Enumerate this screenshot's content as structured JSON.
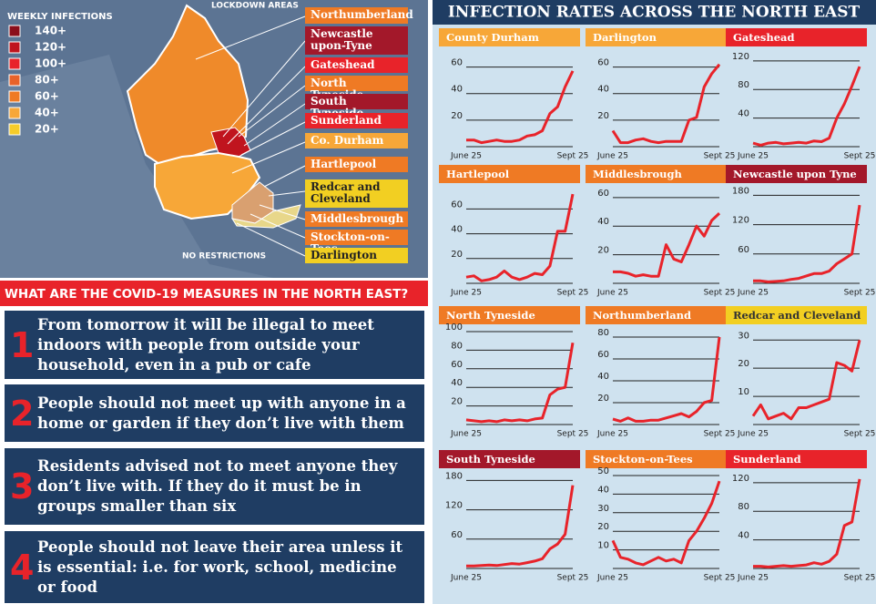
{
  "map": {
    "legend_title": "WEEKLY INFECTIONS",
    "lockdown_label": "LOCKDOWN AREAS",
    "no_restrictions_label": "NO RESTRICTIONS",
    "legend": [
      {
        "label": "140+",
        "color": "#8b0d1a"
      },
      {
        "label": "120+",
        "color": "#c0141e"
      },
      {
        "label": "100+",
        "color": "#e8232a"
      },
      {
        "label": "80+",
        "color": "#e8622a"
      },
      {
        "label": "60+",
        "color": "#ef7a24"
      },
      {
        "label": "40+",
        "color": "#f7a738"
      },
      {
        "label": "20+",
        "color": "#f6cc2a"
      }
    ],
    "areas": [
      {
        "name": "Northumberland",
        "color": "#ef7a24"
      },
      {
        "name": "Newcastle upon-Tyne",
        "color": "#a3182a"
      },
      {
        "name": "Gateshead",
        "color": "#e8232a"
      },
      {
        "name": "North Tyneside",
        "color": "#ef7a24"
      },
      {
        "name": "South Tyneside",
        "color": "#a3182a"
      },
      {
        "name": "Sunderland",
        "color": "#e8232a"
      },
      {
        "name": "Co. Durham",
        "color": "#f7a738"
      },
      {
        "name": "Hartlepool",
        "color": "#ef7a24"
      },
      {
        "name": "Redcar and Cleveland",
        "color": "#f2cf22"
      },
      {
        "name": "Middlesbrough",
        "color": "#ef7a24"
      },
      {
        "name": "Stockton-on-Tees",
        "color": "#ef7a24"
      },
      {
        "name": "Darlington",
        "color": "#f2cf22"
      }
    ]
  },
  "measures": {
    "title": "WHAT ARE THE COVID-19 MEASURES IN THE NORTH EAST?",
    "items": [
      {
        "number": 1,
        "text": "From tomorrow it will be illegal to meet indoors with people from outside your household, even in a pub or cafe"
      },
      {
        "number": 2,
        "text": "People should not meet up with anyone in a home or garden if they don’t live with them"
      },
      {
        "number": 3,
        "text": "Residents advised not to meet anyone they don’t live with. If they do it must be in groups smaller than six"
      },
      {
        "number": 4,
        "text": "People should not leave their area unless it is essential: i.e. for work, school, medicine or food"
      }
    ]
  },
  "charts_title": "INFECTION RATES ACROSS THE NORTH EAST",
  "chart_data": [
    {
      "type": "line",
      "title": "County Durham",
      "header_color": "#f7a738",
      "color": "#e8232a",
      "grid": true,
      "categories": [
        "June 25",
        null,
        null,
        null,
        null,
        null,
        null,
        null,
        null,
        null,
        null,
        null,
        null,
        null,
        "Sept 25"
      ],
      "values": [
        5,
        5,
        3,
        4,
        5,
        4,
        4,
        5,
        8,
        9,
        12,
        25,
        30,
        45,
        57
      ],
      "ylim": [
        0,
        70
      ],
      "yticks": [
        20,
        40,
        60
      ]
    },
    {
      "type": "line",
      "title": "Darlington",
      "header_color": "#f7a738",
      "color": "#e8232a",
      "grid": true,
      "categories": [
        "June 25",
        null,
        null,
        null,
        null,
        null,
        null,
        null,
        null,
        null,
        null,
        null,
        null,
        null,
        "Sept 25"
      ],
      "values": [
        12,
        3,
        3,
        5,
        6,
        4,
        3,
        4,
        4,
        4,
        20,
        22,
        45,
        55,
        62
      ],
      "ylim": [
        0,
        70
      ],
      "yticks": [
        20,
        40,
        60
      ]
    },
    {
      "type": "line",
      "title": "Gateshead",
      "header_color": "#e8232a",
      "color": "#e8232a",
      "grid": true,
      "categories": [
        "June 25",
        null,
        null,
        null,
        null,
        null,
        null,
        null,
        null,
        null,
        null,
        null,
        null,
        null,
        "Sept 25"
      ],
      "values": [
        5,
        2,
        5,
        6,
        4,
        5,
        6,
        5,
        8,
        7,
        12,
        40,
        60,
        85,
        112
      ],
      "ylim": [
        0,
        130
      ],
      "yticks": [
        40,
        80,
        120
      ]
    },
    {
      "type": "line",
      "title": "Hartlepool",
      "header_color": "#ef7a24",
      "color": "#e8232a",
      "grid": true,
      "categories": [
        "June 25",
        null,
        null,
        null,
        null,
        null,
        null,
        null,
        null,
        null,
        null,
        null,
        null,
        null,
        "Sept 25"
      ],
      "values": [
        5,
        6,
        2,
        3,
        5,
        10,
        5,
        3,
        5,
        8,
        7,
        14,
        42,
        42,
        72
      ],
      "ylim": [
        0,
        75
      ],
      "yticks": [
        20,
        40,
        60
      ]
    },
    {
      "type": "line",
      "title": "Middlesbrough",
      "header_color": "#ef7a24",
      "color": "#e8232a",
      "grid": true,
      "categories": [
        "June 25",
        null,
        null,
        null,
        null,
        null,
        null,
        null,
        null,
        null,
        null,
        null,
        null,
        null,
        "Sept 25"
      ],
      "values": [
        8,
        8,
        7,
        5,
        6,
        5,
        5,
        27,
        17,
        15,
        27,
        40,
        33,
        44,
        49
      ],
      "ylim": [
        0,
        65
      ],
      "yticks": [
        20,
        40,
        60
      ]
    },
    {
      "type": "line",
      "title": "Newcastle upon Tyne",
      "header_color": "#a3182a",
      "color": "#e8232a",
      "grid": true,
      "categories": [
        "June 25",
        null,
        null,
        null,
        null,
        null,
        null,
        null,
        null,
        null,
        null,
        null,
        null,
        null,
        "Sept 25"
      ],
      "values": [
        5,
        5,
        3,
        4,
        5,
        8,
        10,
        15,
        20,
        20,
        25,
        40,
        50,
        60,
        160
      ],
      "ylim": [
        0,
        190
      ],
      "yticks": [
        60,
        120,
        180
      ]
    },
    {
      "type": "line",
      "title": "North Tyneside",
      "header_color": "#ef7a24",
      "color": "#e8232a",
      "grid": true,
      "categories": [
        "June 25",
        null,
        null,
        null,
        null,
        null,
        null,
        null,
        null,
        null,
        null,
        null,
        null,
        null,
        "Sept 25"
      ],
      "values": [
        5,
        4,
        3,
        4,
        3,
        5,
        4,
        5,
        4,
        6,
        7,
        32,
        38,
        40,
        88
      ],
      "ylim": [
        0,
        100
      ],
      "yticks": [
        20,
        40,
        60,
        80,
        100
      ]
    },
    {
      "type": "line",
      "title": "Northumberland",
      "header_color": "#ef7a24",
      "color": "#e8232a",
      "grid": true,
      "categories": [
        "June 25",
        null,
        null,
        null,
        null,
        null,
        null,
        null,
        null,
        null,
        null,
        null,
        null,
        null,
        "Sept 25"
      ],
      "values": [
        5,
        3,
        6,
        3,
        3,
        4,
        4,
        6,
        8,
        10,
        7,
        12,
        20,
        22,
        80
      ],
      "ylim": [
        0,
        85
      ],
      "yticks": [
        20,
        40,
        60,
        80
      ]
    },
    {
      "type": "line",
      "title": "Redcar and Cleveland",
      "header_color": "#f2cf22",
      "color": "#e8232a",
      "grid": true,
      "categories": [
        "June 25",
        null,
        null,
        null,
        null,
        null,
        null,
        null,
        null,
        null,
        null,
        null,
        null,
        null,
        "Sept 25"
      ],
      "values": [
        3,
        7,
        2,
        3,
        4,
        2,
        6,
        6,
        7,
        8,
        9,
        22,
        21,
        19,
        30
      ],
      "ylim": [
        0,
        33
      ],
      "yticks": [
        10,
        20,
        30
      ]
    },
    {
      "type": "line",
      "title": "South Tyneside",
      "header_color": "#a3182a",
      "color": "#e8232a",
      "grid": true,
      "categories": [
        "June 25",
        null,
        null,
        null,
        null,
        null,
        null,
        null,
        null,
        null,
        null,
        null,
        null,
        null,
        "Sept 25"
      ],
      "values": [
        5,
        5,
        6,
        7,
        6,
        8,
        10,
        9,
        12,
        15,
        20,
        40,
        50,
        70,
        170
      ],
      "ylim": [
        0,
        190
      ],
      "yticks": [
        60,
        120,
        180
      ]
    },
    {
      "type": "line",
      "title": "Stockton-on-Tees",
      "header_color": "#ef7a24",
      "color": "#e8232a",
      "grid": true,
      "categories": [
        "June 25",
        null,
        null,
        null,
        null,
        null,
        null,
        null,
        null,
        null,
        null,
        null,
        null,
        null,
        "Sept 25"
      ],
      "values": [
        15,
        6,
        5,
        3,
        2,
        4,
        6,
        4,
        5,
        3,
        15,
        20,
        27,
        35,
        47
      ],
      "ylim": [
        0,
        50
      ],
      "yticks": [
        10,
        20,
        30,
        40,
        50
      ]
    },
    {
      "type": "line",
      "title": "Sunderland",
      "header_color": "#e8232a",
      "color": "#e8232a",
      "grid": true,
      "categories": [
        "June 25",
        null,
        null,
        null,
        null,
        null,
        null,
        null,
        null,
        null,
        null,
        null,
        null,
        null,
        "Sept 25"
      ],
      "values": [
        3,
        3,
        2,
        3,
        4,
        3,
        4,
        5,
        8,
        6,
        10,
        20,
        60,
        65,
        125
      ],
      "ylim": [
        0,
        130
      ],
      "yticks": [
        40,
        80,
        120
      ]
    }
  ]
}
